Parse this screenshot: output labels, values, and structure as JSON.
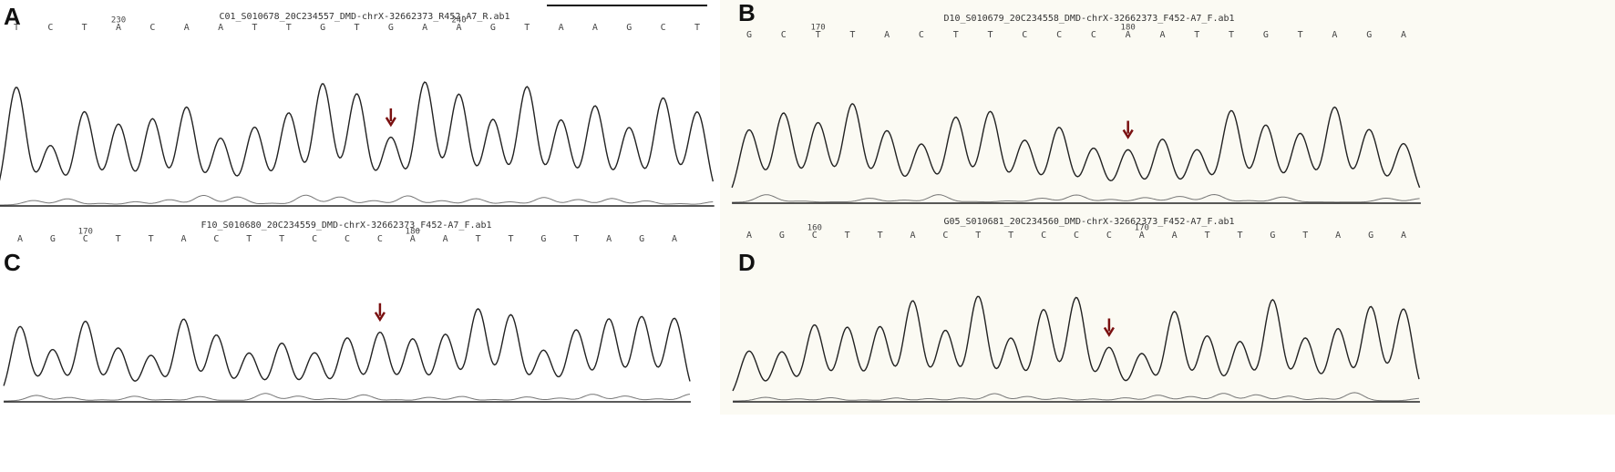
{
  "panels": [
    {
      "label": "A",
      "filename": "C01_S010678_20C234557_DMD-chrX-32662373_R452-A7_R.ab1",
      "bases": [
        "T",
        "C",
        "T",
        "A",
        "C",
        "A",
        "A",
        "T",
        "T",
        "G",
        "T",
        "G",
        "A",
        "A",
        "G",
        "T",
        "A",
        "A",
        "G",
        "C",
        "T"
      ],
      "markers": [
        "230",
        "240"
      ]
    },
    {
      "label": "B",
      "filename": "D10_S010679_20C234558_DMD-chrX-32662373_F452-A7_F.ab1",
      "bases": [
        "G",
        "C",
        "T",
        "T",
        "A",
        "C",
        "T",
        "T",
        "C",
        "C",
        "C",
        "A",
        "A",
        "T",
        "T",
        "G",
        "T",
        "A",
        "G",
        "A"
      ],
      "markers": [
        "170",
        "180"
      ]
    },
    {
      "label": "C",
      "filename": "F10_S010680_20C234559_DMD-chrX-32662373_F452-A7_F.ab1",
      "bases": [
        "A",
        "G",
        "C",
        "T",
        "T",
        "A",
        "C",
        "T",
        "T",
        "C",
        "C",
        "C",
        "A",
        "A",
        "T",
        "T",
        "G",
        "T",
        "A",
        "G",
        "A"
      ],
      "markers": [
        "170",
        "180"
      ]
    },
    {
      "label": "D",
      "filename": "G05_S010681_20C234560_DMD-chrX-32662373_F452-A7_F.ab1",
      "bases": [
        "A",
        "G",
        "C",
        "T",
        "T",
        "A",
        "C",
        "T",
        "T",
        "C",
        "C",
        "C",
        "A",
        "A",
        "T",
        "T",
        "G",
        "T",
        "A",
        "G",
        "A"
      ],
      "markers": [
        "160",
        "170"
      ]
    }
  ]
}
